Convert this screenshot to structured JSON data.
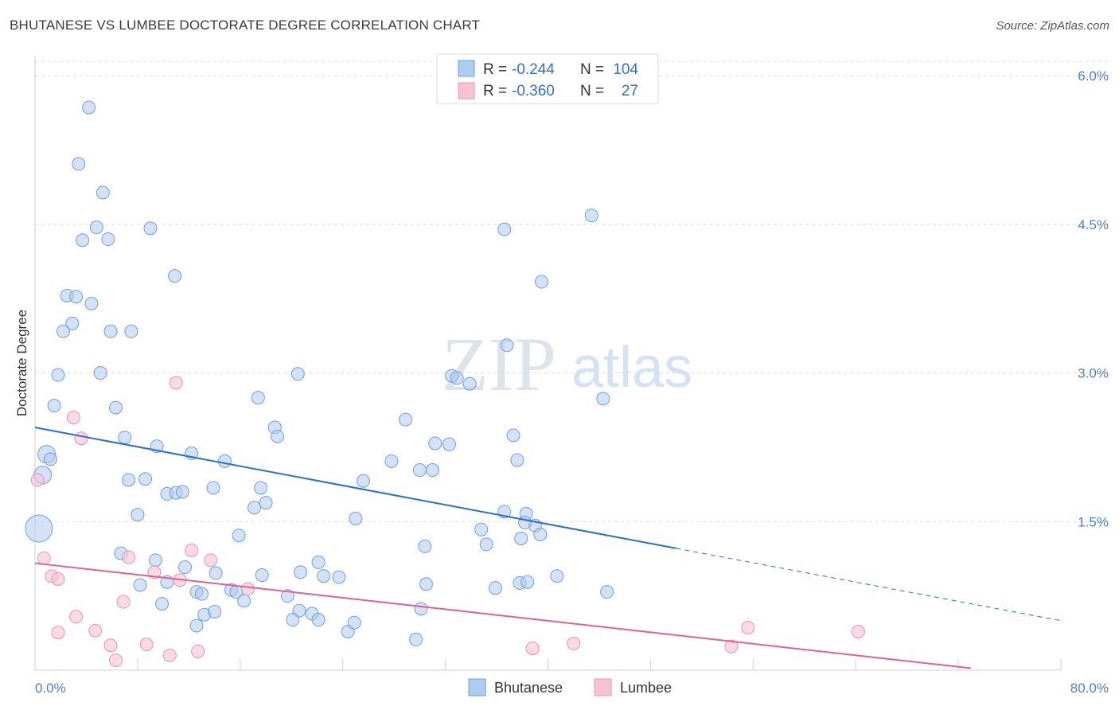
{
  "title": "BHUTANESE VS LUMBEE DOCTORATE DEGREE CORRELATION CHART",
  "source": "Source: ZipAtlas.com",
  "watermark": {
    "zip": "ZIP",
    "atlas": "atlas"
  },
  "legend": {
    "rows": [
      {
        "r_label": "R = ",
        "r_value": "-0.244",
        "n_label": "N = ",
        "n_value": "104"
      },
      {
        "r_label": "R = ",
        "r_value": "-0.360",
        "n_label": "N = ",
        "n_value": "27"
      }
    ]
  },
  "colors": {
    "bhutanese_fill": "#aecbf0",
    "bhutanese_stroke": "#6f9fdc",
    "bhutanese_line": "#2a6fd0",
    "lumbee_fill": "#f6c3d3",
    "lumbee_stroke": "#e993ae",
    "lumbee_line": "#e0628e",
    "tick_text": "#4a7fd6",
    "grid": "#dcdcdc"
  },
  "chart_data": {
    "type": "scatter",
    "title": "BHUTANESE VS LUMBEE DOCTORATE DEGREE CORRELATION CHART",
    "xlabel": "",
    "ylabel": "Doctorate Degree",
    "xlim": [
      0,
      80
    ],
    "ylim": [
      0,
      6.25
    ],
    "x_tick_labels": [
      "0.0%",
      "80.0%"
    ],
    "y_ticks": [
      1.5,
      3.0,
      4.5,
      6.0
    ],
    "y_tick_labels": [
      "1.5%",
      "3.0%",
      "4.5%",
      "6.0%"
    ],
    "grid": true,
    "legend_position": "top-center",
    "series": [
      {
        "name": "Bhutanese",
        "r": -0.244,
        "n": 104,
        "trend": {
          "x0": 0,
          "y0": 2.45,
          "x1": 50,
          "y1": 1.23,
          "dash_to_x": 80,
          "dash_to_y": 0.5
        },
        "points": [
          [
            4.2,
            5.68
          ],
          [
            3.4,
            5.11
          ],
          [
            5.3,
            4.82
          ],
          [
            4.8,
            4.47
          ],
          [
            9.0,
            4.46
          ],
          [
            3.7,
            4.34
          ],
          [
            5.7,
            4.35
          ],
          [
            10.9,
            3.98
          ],
          [
            2.5,
            3.78
          ],
          [
            3.2,
            3.77
          ],
          [
            4.4,
            3.7
          ],
          [
            2.9,
            3.5
          ],
          [
            2.2,
            3.42
          ],
          [
            5.9,
            3.42
          ],
          [
            7.5,
            3.42
          ],
          [
            1.8,
            2.98
          ],
          [
            5.1,
            3.0
          ],
          [
            1.5,
            2.67
          ],
          [
            6.3,
            2.65
          ],
          [
            0.9,
            2.18
          ],
          [
            1.2,
            2.13
          ],
          [
            0.6,
            1.97
          ],
          [
            7.0,
            2.35
          ],
          [
            9.5,
            2.26
          ],
          [
            12.2,
            2.19
          ],
          [
            14.8,
            2.11
          ],
          [
            7.3,
            1.92
          ],
          [
            8.6,
            1.93
          ],
          [
            10.3,
            1.78
          ],
          [
            11.0,
            1.79
          ],
          [
            11.5,
            1.8
          ],
          [
            13.9,
            1.84
          ],
          [
            8.0,
            1.57
          ],
          [
            17.4,
            2.75
          ],
          [
            18.7,
            2.45
          ],
          [
            18.9,
            2.36
          ],
          [
            20.5,
            2.99
          ],
          [
            17.6,
            1.84
          ],
          [
            17.1,
            1.64
          ],
          [
            18.0,
            1.69
          ],
          [
            15.9,
            1.36
          ],
          [
            6.7,
            1.18
          ],
          [
            9.4,
            1.11
          ],
          [
            11.7,
            1.04
          ],
          [
            14.1,
            0.98
          ],
          [
            8.2,
            0.86
          ],
          [
            10.3,
            0.89
          ],
          [
            9.9,
            0.67
          ],
          [
            12.6,
            0.79
          ],
          [
            13.0,
            0.77
          ],
          [
            15.3,
            0.81
          ],
          [
            15.7,
            0.79
          ],
          [
            16.3,
            0.7
          ],
          [
            17.7,
            0.96
          ],
          [
            13.2,
            0.56
          ],
          [
            14.0,
            0.59
          ],
          [
            12.6,
            0.45
          ],
          [
            19.7,
            0.75
          ],
          [
            20.7,
            0.99
          ],
          [
            22.1,
            1.09
          ],
          [
            22.5,
            0.95
          ],
          [
            23.7,
            0.94
          ],
          [
            20.6,
            0.6
          ],
          [
            20.1,
            0.51
          ],
          [
            21.6,
            0.57
          ],
          [
            22.1,
            0.51
          ],
          [
            30.1,
            0.62
          ],
          [
            24.4,
            0.39
          ],
          [
            24.9,
            0.48
          ],
          [
            25.6,
            1.91
          ],
          [
            27.8,
            2.11
          ],
          [
            30.4,
            1.25
          ],
          [
            30.5,
            0.87
          ],
          [
            29.7,
            0.31
          ],
          [
            28.9,
            2.53
          ],
          [
            30.0,
            2.02
          ],
          [
            31.0,
            2.02
          ],
          [
            31.2,
            2.29
          ],
          [
            32.3,
            2.28
          ],
          [
            32.5,
            2.97
          ],
          [
            32.9,
            2.95
          ],
          [
            33.9,
            2.89
          ],
          [
            36.6,
            4.45
          ],
          [
            36.6,
            1.6
          ],
          [
            36.8,
            3.28
          ],
          [
            34.8,
            1.42
          ],
          [
            35.2,
            1.27
          ],
          [
            37.6,
            2.12
          ],
          [
            37.3,
            2.37
          ],
          [
            37.8,
            0.88
          ],
          [
            38.4,
            0.89
          ],
          [
            37.9,
            1.33
          ],
          [
            38.3,
            1.58
          ],
          [
            39.0,
            1.46
          ],
          [
            39.4,
            1.37
          ],
          [
            39.5,
            3.92
          ],
          [
            40.7,
            0.95
          ],
          [
            43.4,
            4.59
          ],
          [
            44.3,
            2.74
          ],
          [
            44.6,
            0.79
          ],
          [
            25.0,
            1.53
          ],
          [
            0.3,
            1.43
          ],
          [
            38.2,
            1.49
          ],
          [
            35.9,
            0.83
          ]
        ],
        "sizes": [
          [
            0.3,
            1.43,
            "large"
          ],
          [
            0.6,
            1.97,
            "medium"
          ],
          [
            0.9,
            2.18,
            "medium"
          ]
        ]
      },
      {
        "name": "Lumbee",
        "r": -0.36,
        "n": 27,
        "trend": {
          "x0": 0,
          "y0": 1.08,
          "x1": 73,
          "y1": 0.02
        },
        "points": [
          [
            0.2,
            1.92
          ],
          [
            0.7,
            1.13
          ],
          [
            1.3,
            0.95
          ],
          [
            1.8,
            0.92
          ],
          [
            3.0,
            2.55
          ],
          [
            3.6,
            2.34
          ],
          [
            1.8,
            0.38
          ],
          [
            3.2,
            0.54
          ],
          [
            4.7,
            0.4
          ],
          [
            5.9,
            0.25
          ],
          [
            6.3,
            0.1
          ],
          [
            6.9,
            0.69
          ],
          [
            7.3,
            1.14
          ],
          [
            8.7,
            0.26
          ],
          [
            9.3,
            0.99
          ],
          [
            10.5,
            0.15
          ],
          [
            11.0,
            2.9
          ],
          [
            11.3,
            0.91
          ],
          [
            12.2,
            1.21
          ],
          [
            12.7,
            0.19
          ],
          [
            13.7,
            1.11
          ],
          [
            16.6,
            0.82
          ],
          [
            38.8,
            0.22
          ],
          [
            42.0,
            0.27
          ],
          [
            54.3,
            0.24
          ],
          [
            55.6,
            0.43
          ],
          [
            64.2,
            0.39
          ]
        ]
      }
    ]
  },
  "bottom_legend": [
    {
      "label": "Bhutanese"
    },
    {
      "label": "Lumbee"
    }
  ]
}
